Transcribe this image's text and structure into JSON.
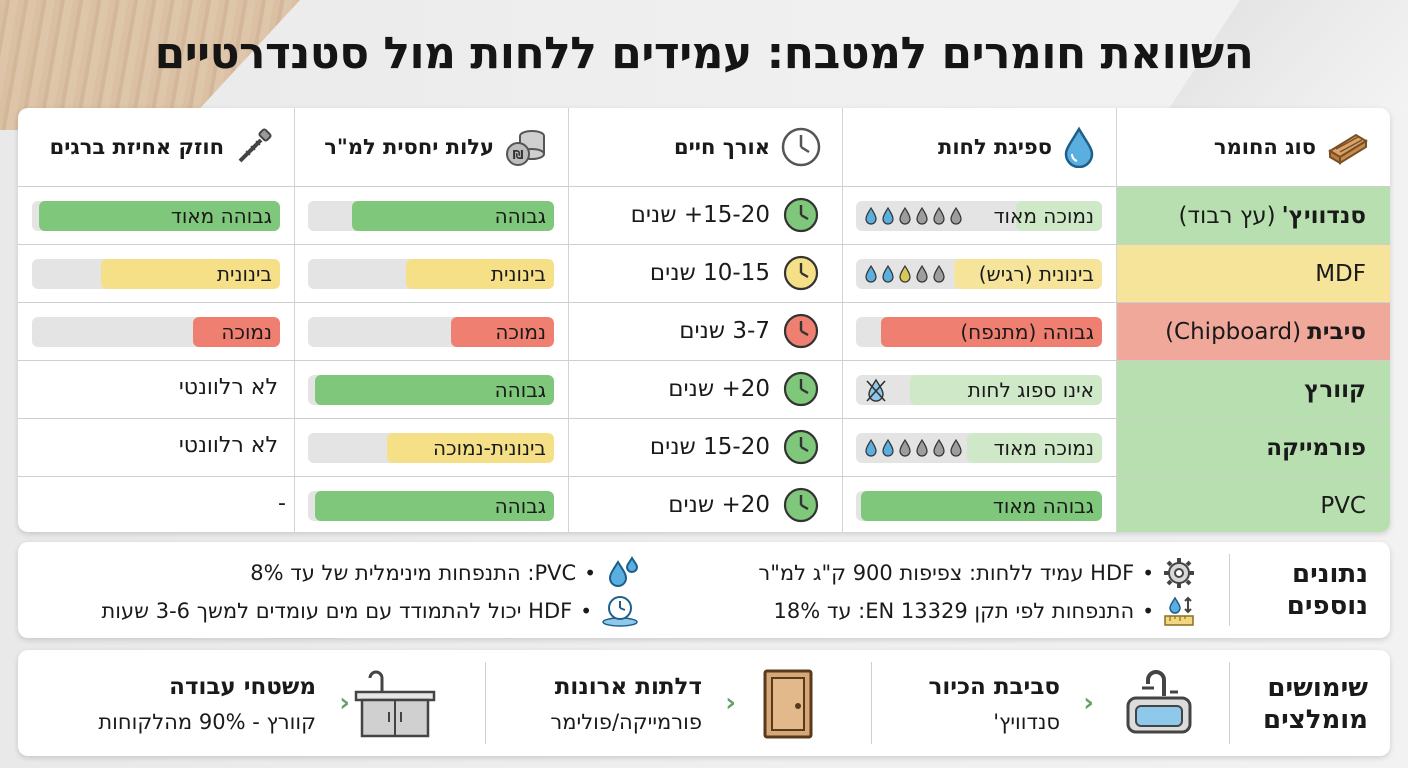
{
  "title": "השוואת חומרים למטבח: עמידים ללחות מול סטנדרטיים",
  "columns": [
    {
      "label": "סוג החומר",
      "icon": "wood-plank-icon"
    },
    {
      "label": "ספיגת לחות",
      "icon": "water-drop-icon"
    },
    {
      "label": "אורך חיים",
      "icon": "clock-icon"
    },
    {
      "label": "עלות יחסית למ\"ר",
      "icon": "coins-icon"
    },
    {
      "label": "חוזק אחיזת ברגים",
      "icon": "screw-icon"
    }
  ],
  "rows": [
    {
      "name_bold": "סנדוויץ'",
      "name_rest": "(עץ רבוד)",
      "bg": "#b8dfb0",
      "absorption": {
        "label": "נמוכה מאוד",
        "level": 0.35,
        "color": "#cfe9c8",
        "drops_colored": 2,
        "drops_total": 6
      },
      "life": {
        "label": "15-20+ שנים",
        "status": "green"
      },
      "cost": {
        "label": "גבוהה",
        "level": 0.82,
        "color": "#7fc77a"
      },
      "screw": {
        "label": "גבוהה מאוד",
        "level": 0.97,
        "color": "#7fc77a"
      }
    },
    {
      "name_bold": "",
      "name_rest": "MDF",
      "bg": "#f5e49a",
      "absorption": {
        "label": "בינונית (רגיש)",
        "level": 0.6,
        "color": "#f5e49a",
        "drops_colored": 3,
        "drops_total": 5
      },
      "life": {
        "label": "10-15 שנים",
        "status": "yellow"
      },
      "cost": {
        "label": "בינונית",
        "level": 0.6,
        "color": "#f5e088"
      },
      "screw": {
        "label": "בינונית",
        "level": 0.72,
        "color": "#f5e088"
      }
    },
    {
      "name_bold": "סיבית",
      "name_rest": "(Chipboard)",
      "bg": "#f0a89a",
      "absorption": {
        "label": "גבוהה (מתנפח)",
        "level": 0.9,
        "color": "#ef7f70",
        "drops_colored": 0,
        "drops_total": 0
      },
      "life": {
        "label": "3-7 שנים",
        "status": "red"
      },
      "cost": {
        "label": "נמוכה",
        "level": 0.42,
        "color": "#ef7f70"
      },
      "screw": {
        "label": "נמוכה",
        "level": 0.35,
        "color": "#ef7f70"
      }
    },
    {
      "name_bold": "קוורץ",
      "name_rest": "",
      "bg": "#b8dfb0",
      "absorption": {
        "label": "אינו ספוג לחות",
        "level": 0.78,
        "color": "#cfe9c8",
        "drops_colored": 0,
        "drops_total": 0
      },
      "life": {
        "label": "20+ שנים",
        "status": "green"
      },
      "cost": {
        "label": "גבוהה",
        "level": 0.97,
        "color": "#7fc77a"
      },
      "screw": {
        "label": "לא רלוונטי",
        "level": null,
        "color": ""
      }
    },
    {
      "name_bold": "פורמייקה",
      "name_rest": "",
      "bg": "#b8dfb0",
      "absorption": {
        "label": "נמוכה מאוד",
        "level": 0.55,
        "color": "#cfe9c8",
        "drops_colored": 2,
        "drops_total": 6
      },
      "life": {
        "label": "15-20 שנים",
        "status": "green"
      },
      "cost": {
        "label": "בינונית-נמוכה",
        "level": 0.68,
        "color": "#f5e088"
      },
      "screw": {
        "label": "לא רלוונטי",
        "level": null,
        "color": ""
      }
    },
    {
      "name_bold": "",
      "name_rest": "PVC",
      "bg": "#b8dfb0",
      "absorption": {
        "label": "גבוהה מאוד",
        "level": 0.98,
        "color": "#7fc77a",
        "drops_colored": 0,
        "drops_total": 0
      },
      "life": {
        "label": "20+ שנים",
        "status": "green"
      },
      "cost": {
        "label": "גבוהה",
        "level": 0.97,
        "color": "#7fc77a"
      },
      "screw": {
        "label": "-",
        "level": null,
        "color": ""
      }
    }
  ],
  "status_colors": {
    "green": "#7fc77a",
    "yellow": "#f5e088",
    "red": "#ef7f70"
  },
  "facts_panel": {
    "title_line1": "נתונים",
    "title_line2": "נוספים",
    "facts": [
      {
        "text": "HDF עמיד ללחות: צפיפות 900 ק\"ג למ\"ר",
        "icon": "gear-icon"
      },
      {
        "text": "התנפחות לפי תקן EN 13329: עד 18%",
        "icon": "ruler-drop-icon"
      },
      {
        "text": "PVC:  התנפחות מינימלית של עד 8%",
        "icon": "water-drops-icon"
      },
      {
        "text": "HDF יכול להתמודד עם מים עומדים למשך 3-6 שעות",
        "icon": "clock-water-icon"
      }
    ]
  },
  "uses_panel": {
    "title_line1": "שימושים",
    "title_line2": "מומלצים",
    "uses": [
      {
        "title": "סביבת הכיור",
        "sub": "סנדוויץ'",
        "icon": "sink-icon"
      },
      {
        "title": "דלתות ארונות",
        "sub": "פורמייקה/פולימר",
        "icon": "door-icon"
      },
      {
        "title": "משטחי עבודה",
        "sub": "קוורץ - 90% מהלקוחות",
        "icon": "counter-icon"
      }
    ]
  }
}
